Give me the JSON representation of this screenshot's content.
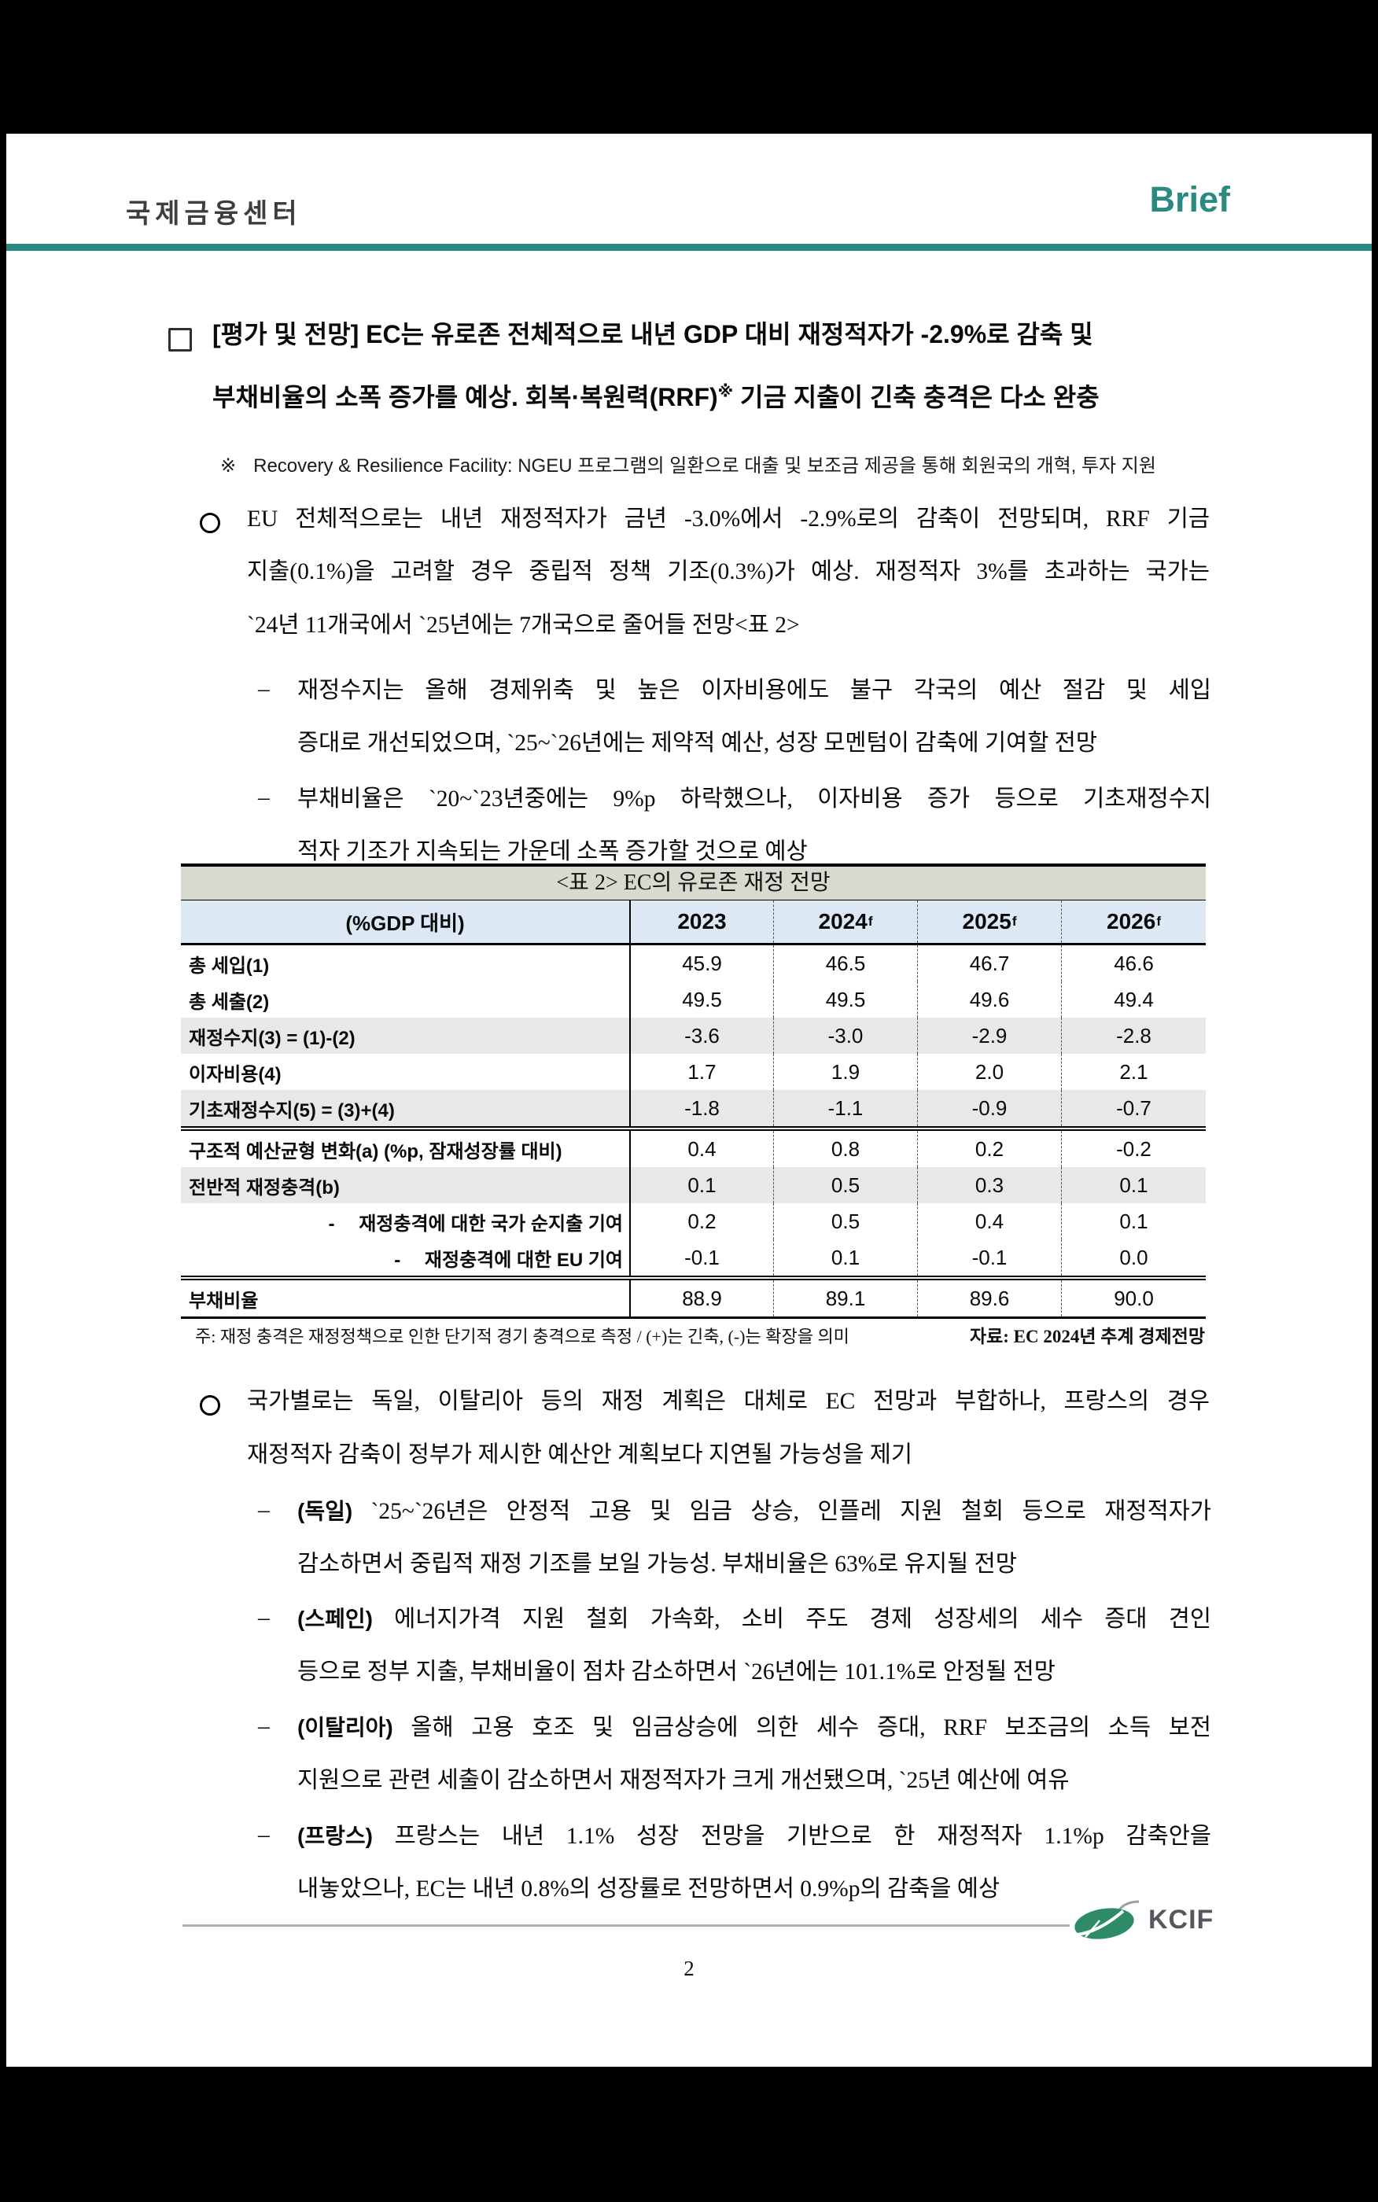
{
  "header": {
    "org": "국제금융센터",
    "brand": "Brief"
  },
  "title": {
    "line1": "[평가 및 전망] EC는 유로존 전체적으로 내년 GDP 대비 재정적자가 -2.9%로 감축 및",
    "line2_pre": "부채비율의 소폭 증가를 예상. 회복·복원력(RRF)",
    "line2_sup": "※",
    "line2_post": " 기금 지출이 긴축 충격은 다소 완충"
  },
  "top_note": {
    "marker": "※",
    "text": "Recovery & Resilience Facility: NGEU 프로그램의 일환으로 대출 및 보조금 제공을 통해 회원국의 개혁, 투자 지원"
  },
  "section1": {
    "lines": [
      "EU 전체적으로는 내년 재정적자가 금년 -3.0%에서 -2.9%로의 감축이 전망되며, RRF 기금",
      "지출(0.1%)을 고려할 경우 중립적 정책 기조(0.3%)가 예상. 재정적자 3%를 초과하는 국가는",
      "`24년 11개국에서 `25년에는 7개국으로 줄어들 전망<표 2>"
    ],
    "dash": "–",
    "sub1": [
      "재정수지는 올해 경제위축 및 높은 이자비용에도 불구 각국의 예산 절감 및 세입",
      "증대로 개선되었으며, `25~`26년에는 제약적 예산, 성장 모멘텀이 감축에 기여할 전망"
    ],
    "sub2": [
      "부채비율은 `20~`23년중에는 9%p 하락했으나, 이자비용 증가 등으로 기초재정수지",
      "적자 기조가 지속되는 가운데 소폭 증가할 것으로 예상"
    ]
  },
  "table": {
    "title": "<표 2> EC의 유로존 재정 전망",
    "col_header": "(%GDP 대비)",
    "years": [
      {
        "label": "2023",
        "sup": ""
      },
      {
        "label": "2024",
        "sup": "f"
      },
      {
        "label": "2025",
        "sup": "f"
      },
      {
        "label": "2026",
        "sup": "f"
      }
    ],
    "rows": [
      {
        "label": "총 세입(1)",
        "values": [
          "45.9",
          "46.5",
          "46.7",
          "46.6"
        ],
        "shade": false,
        "dsep": false,
        "align": "left"
      },
      {
        "label": "총 세출(2)",
        "values": [
          "49.5",
          "49.5",
          "49.6",
          "49.4"
        ],
        "shade": false,
        "dsep": false,
        "align": "left"
      },
      {
        "label": "재정수지(3) = (1)-(2)",
        "values": [
          "-3.6",
          "-3.0",
          "-2.9",
          "-2.8"
        ],
        "shade": true,
        "dsep": false,
        "align": "left"
      },
      {
        "label": "이자비용(4)",
        "values": [
          "1.7",
          "1.9",
          "2.0",
          "2.1"
        ],
        "shade": false,
        "dsep": false,
        "align": "left"
      },
      {
        "label": "기초재정수지(5) = (3)+(4)",
        "values": [
          "-1.8",
          "-1.1",
          "-0.9",
          "-0.7"
        ],
        "shade": true,
        "dsep": false,
        "align": "left"
      },
      {
        "label": "구조적 예산균형 변화(a) (%p, 잠재성장률 대비)",
        "values": [
          "0.4",
          "0.8",
          "0.2",
          "-0.2"
        ],
        "shade": false,
        "dsep": true,
        "align": "left"
      },
      {
        "label": "전반적 재정충격(b)",
        "values": [
          "0.1",
          "0.5",
          "0.3",
          "0.1"
        ],
        "shade": true,
        "dsep": false,
        "align": "left"
      },
      {
        "label": "-　 재정충격에 대한 국가 순지출 기여",
        "values": [
          "0.2",
          "0.5",
          "0.4",
          "0.1"
        ],
        "shade": false,
        "dsep": false,
        "align": "right"
      },
      {
        "label": "-　 재정충격에 대한 EU 기여",
        "values": [
          "-0.1",
          "0.1",
          "-0.1",
          "0.0"
        ],
        "shade": false,
        "dsep": false,
        "align": "right"
      },
      {
        "label": "부채비율",
        "values": [
          "88.9",
          "89.1",
          "89.6",
          "90.0"
        ],
        "shade": false,
        "dsep": true,
        "align": "left"
      }
    ],
    "note_left": "주:  재정 충격은 재정정책으로 인한 단기적 경기 충격으로 측정 / (+)는 긴축, (-)는 확장을 의미",
    "note_right": "자료: EC 2024년 추계 경제전망"
  },
  "section2": {
    "lines": [
      "국가별로는 독일, 이탈리아 등의 재정 계획은 대체로 EC 전망과 부합하나, 프랑스의 경우",
      "재정적자 감축이 정부가 제시한 예산안 계획보다 지연될 가능성을 제기"
    ],
    "dash": "–",
    "items": [
      {
        "tag": "(독일)",
        "line1": " `25~`26년은 안정적 고용 및 임금 상승, 인플레 지원 철회 등으로 재정적자가",
        "line2": "감소하면서 중립적 재정 기조를 보일 가능성. 부채비율은 63%로 유지될 전망"
      },
      {
        "tag": "(스페인)",
        "line1": " 에너지가격 지원 철회 가속화, 소비 주도 경제 성장세의 세수 증대 견인",
        "line2": "등으로 정부 지출, 부채비율이 점차 감소하면서 `26년에는 101.1%로 안정될 전망"
      },
      {
        "tag": "(이탈리아)",
        "line1": " 올해 고용 호조 및 임금상승에 의한 세수 증대, RRF 보조금의 소득 보전",
        "line2": "지원으로 관련 세출이 감소하면서 재정적자가 크게 개선됐으며, `25년 예산에 여유"
      },
      {
        "tag": "(프랑스)",
        "line1": " 프랑스는 내년 1.1% 성장 전망을 기반으로 한 재정적자 1.1%p 감축안을",
        "line2": "내놓았으나, EC는 내년 0.8%의 성장률로 전망하면서 0.9%p의 감축을 예상"
      }
    ]
  },
  "footer": {
    "logo_text": "KCIF",
    "page_number": "2"
  },
  "colors": {
    "accent_teal": "#2a8a81",
    "table_title_bg": "#d6dacf",
    "table_header_bg": "#dde8f5",
    "row_shade": "#e8e8e8",
    "logo_green": "#2e8b67"
  }
}
